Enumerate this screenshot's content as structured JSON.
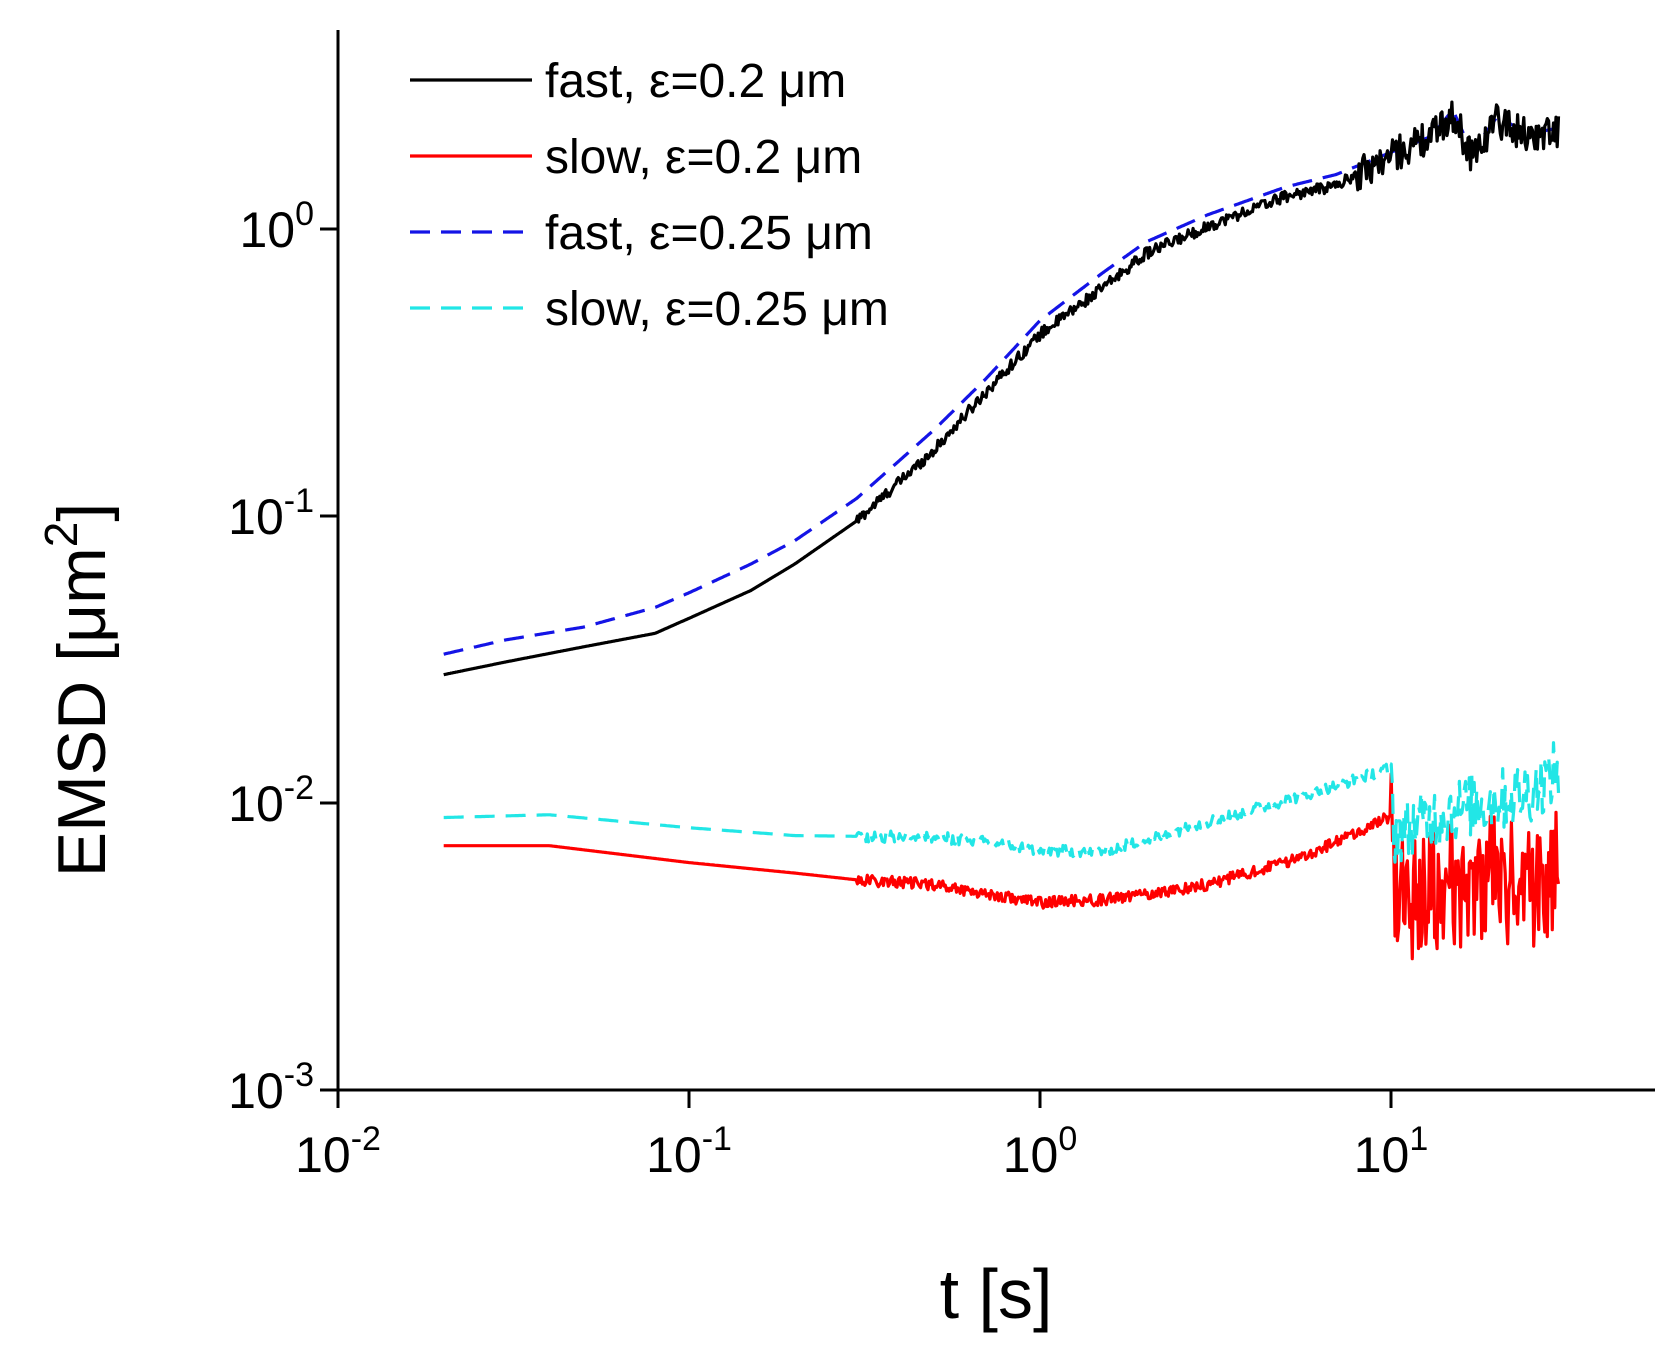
{
  "chart_data": {
    "type": "line",
    "title": "",
    "xlabel": "t [s]",
    "ylabel_text": "EMSD [μm",
    "ylabel_sup": "2",
    "ylabel_close": "]",
    "xscale": "log",
    "yscale": "log",
    "xlim": [
      0.01,
      60
    ],
    "ylim": [
      0.001,
      5
    ],
    "grid": false,
    "legend_position": "top-left",
    "x_ticks": [
      {
        "value": 0.01,
        "base": "10",
        "exp": "-2"
      },
      {
        "value": 0.1,
        "base": "10",
        "exp": "-1"
      },
      {
        "value": 1,
        "base": "10",
        "exp": "0"
      },
      {
        "value": 10,
        "base": "10",
        "exp": "1"
      }
    ],
    "y_ticks": [
      {
        "value": 0.001,
        "base": "10",
        "exp": "-3"
      },
      {
        "value": 0.01,
        "base": "10",
        "exp": "-2"
      },
      {
        "value": 0.1,
        "base": "10",
        "exp": "-1"
      },
      {
        "value": 1,
        "base": "10",
        "exp": "0"
      }
    ],
    "series": [
      {
        "name": "fast, ε=0.2 μm",
        "color": "#000000",
        "dashed": false,
        "noise_amplitude": 0.12,
        "noise_start": 8,
        "points": [
          [
            0.02,
            0.028
          ],
          [
            0.03,
            0.031
          ],
          [
            0.05,
            0.035
          ],
          [
            0.08,
            0.039
          ],
          [
            0.1,
            0.044
          ],
          [
            0.15,
            0.055
          ],
          [
            0.2,
            0.068
          ],
          [
            0.3,
            0.096
          ],
          [
            0.5,
            0.17
          ],
          [
            0.7,
            0.27
          ],
          [
            1,
            0.43
          ],
          [
            1.5,
            0.62
          ],
          [
            2,
            0.82
          ],
          [
            3,
            1.02
          ],
          [
            5,
            1.3
          ],
          [
            7,
            1.42
          ],
          [
            10,
            1.8
          ],
          [
            13,
            2.1
          ],
          [
            15,
            2.5
          ],
          [
            17,
            1.8
          ],
          [
            20,
            2.4
          ],
          [
            25,
            2.1
          ],
          [
            30,
            2.2
          ]
        ]
      },
      {
        "name": "slow, ε=0.2 μm",
        "color": "#ff0000",
        "dashed": false,
        "noise_amplitude": 0.45,
        "noise_start": 10,
        "points": [
          [
            0.02,
            0.0071
          ],
          [
            0.04,
            0.0071
          ],
          [
            0.1,
            0.0062
          ],
          [
            0.2,
            0.0057
          ],
          [
            0.3,
            0.0054
          ],
          [
            0.5,
            0.0052
          ],
          [
            0.8,
            0.0047
          ],
          [
            1,
            0.0045
          ],
          [
            1.5,
            0.0046
          ],
          [
            2,
            0.0048
          ],
          [
            3,
            0.0052
          ],
          [
            5,
            0.0062
          ],
          [
            7,
            0.0073
          ],
          [
            10,
            0.009
          ],
          [
            10.2,
            0.0052
          ],
          [
            12,
            0.0045
          ],
          [
            15,
            0.0052
          ],
          [
            20,
            0.0055
          ],
          [
            25,
            0.005
          ],
          [
            30,
            0.006
          ]
        ]
      },
      {
        "name": "fast, ε=0.25 μm",
        "color": "#1414e6",
        "dashed": true,
        "noise_amplitude": 0.0,
        "noise_start": 8,
        "points": [
          [
            0.02,
            0.033
          ],
          [
            0.03,
            0.037
          ],
          [
            0.05,
            0.041
          ],
          [
            0.08,
            0.048
          ],
          [
            0.1,
            0.054
          ],
          [
            0.15,
            0.068
          ],
          [
            0.2,
            0.082
          ],
          [
            0.3,
            0.115
          ],
          [
            0.5,
            0.2
          ],
          [
            0.7,
            0.3
          ],
          [
            1,
            0.48
          ],
          [
            1.5,
            0.7
          ],
          [
            2,
            0.9
          ],
          [
            3,
            1.12
          ],
          [
            5,
            1.4
          ],
          [
            7,
            1.55
          ],
          [
            10,
            1.85
          ],
          [
            13,
            2.1
          ],
          [
            15,
            2.6
          ],
          [
            17,
            1.85
          ],
          [
            20,
            2.45
          ],
          [
            25,
            2.15
          ],
          [
            30,
            2.25
          ]
        ]
      },
      {
        "name": "slow, ε=0.25 μm",
        "color": "#22e6e6",
        "dashed": true,
        "noise_amplitude": 0.22,
        "noise_start": 10,
        "points": [
          [
            0.02,
            0.0089
          ],
          [
            0.04,
            0.0091
          ],
          [
            0.1,
            0.0082
          ],
          [
            0.2,
            0.0077
          ],
          [
            0.5,
            0.0076
          ],
          [
            0.8,
            0.0072
          ],
          [
            1,
            0.0068
          ],
          [
            1.5,
            0.0068
          ],
          [
            2,
            0.0074
          ],
          [
            3,
            0.0086
          ],
          [
            5,
            0.0102
          ],
          [
            7,
            0.0115
          ],
          [
            10,
            0.0133
          ],
          [
            10.2,
            0.0078
          ],
          [
            15,
            0.0095
          ],
          [
            20,
            0.0102
          ],
          [
            25,
            0.011
          ],
          [
            30,
            0.013
          ]
        ]
      }
    ]
  }
}
